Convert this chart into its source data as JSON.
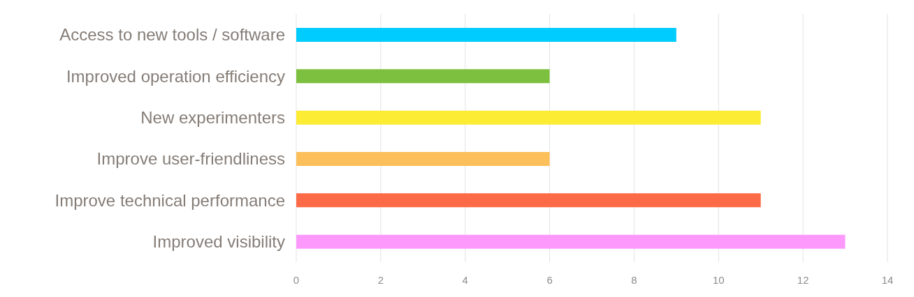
{
  "chart_data": {
    "type": "bar",
    "orientation": "horizontal",
    "categories": [
      "Access to new tools / software",
      "Improved operation efficiency",
      "New experimenters",
      "Improve user-friendliness",
      "Improve technical performance",
      "Improved visibility"
    ],
    "values": [
      9,
      6,
      11,
      6,
      11,
      13
    ],
    "colors": [
      "#00ccff",
      "#7dbf3f",
      "#fcec34",
      "#fdbf5a",
      "#fd6a47",
      "#fd99fd"
    ],
    "xlim": [
      0,
      14
    ],
    "xticks": [
      0,
      2,
      4,
      6,
      8,
      10,
      12,
      14
    ],
    "grid": "x",
    "legend": false
  }
}
